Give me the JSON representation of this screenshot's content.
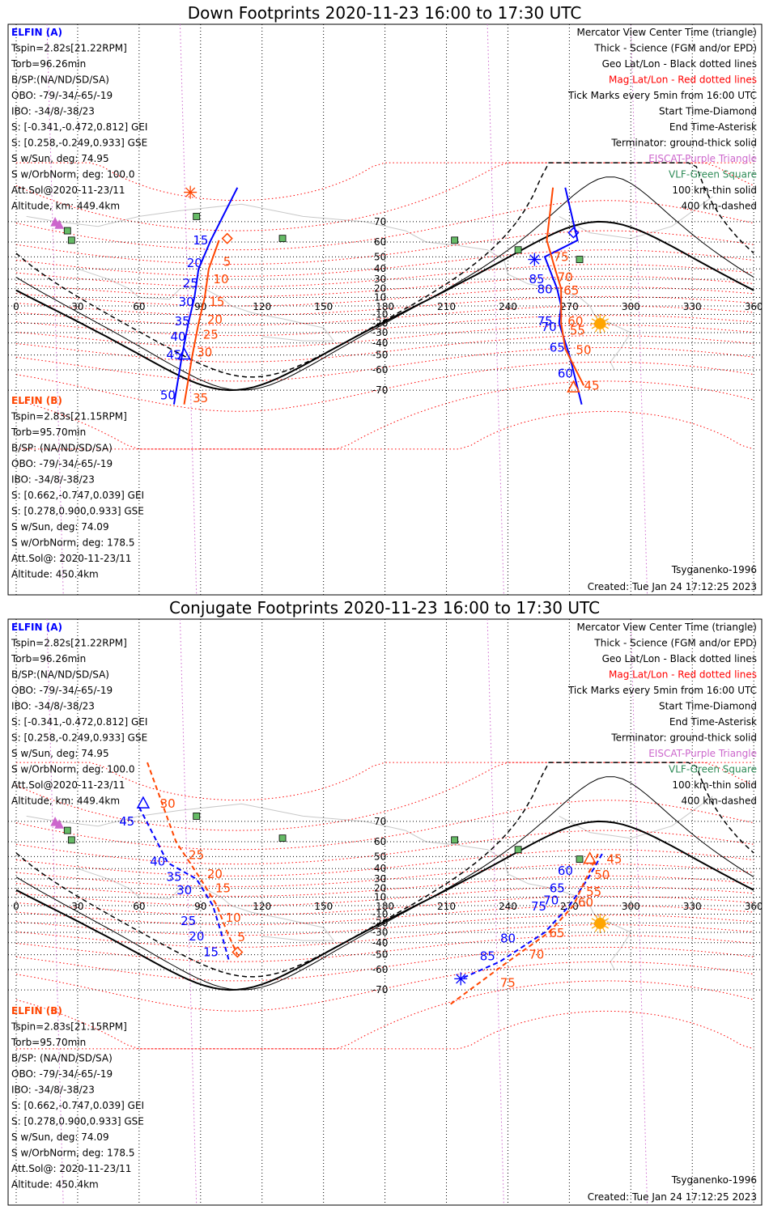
{
  "colors": {
    "elfin_a": "#0000ff",
    "elfin_b": "#ff4500",
    "geo_grid": "#000000",
    "mag_grid": "#ff0000",
    "eiscat": "#cc66cc",
    "vlf": "#2e8b57",
    "vlf_fill": "#66bb66",
    "sun": "#ffa500",
    "coast": "#c8c8c8"
  },
  "panels": [
    {
      "id": "down",
      "title": "Down Footprints 2020-11-23 16:00 to 17:30 UTC",
      "elfin_a": {
        "heading": "ELFIN (A)",
        "lines": [
          "Tspin=2.82s[21.22RPM]",
          "Torb=96.26min",
          "B/SP:(NA/ND/SD/SA)",
          "OBO: -79/-34/-65/-19",
          "IBO: -34/8/-38/23",
          "S: [-0.341,-0.472,0.812] GEI",
          "S: [0.258,-0.249,0.933] GSE",
          "S w/Sun, deg: 74.95",
          "S w/OrbNorm, deg: 100.0",
          "Att.Sol@2020-11-23/11",
          "Altitude, km: 449.4km"
        ]
      },
      "elfin_b": {
        "heading": "ELFIN (B)",
        "lines": [
          "Tspin=2.83s[21.15RPM]",
          "Torb=95.70min",
          "B/SP: (NA/ND/SD/SA)",
          "OBO: -79/-34/-65/-19",
          "IBO: -34/8/-38/23",
          "S: [0.662,-0.747,0.039] GEI",
          "S: [0.278,0.900,0.933] GSE",
          "S w/Sun, deg: 74.09",
          "S w/OrbNorm, deg: 178.5",
          "Att.Sol@: 2020-11-23/11",
          "Altitude: 450.4km"
        ]
      },
      "model": "Tsyganenko-1996",
      "created": "Created: Tue Jan 24 17:12:25 2023"
    },
    {
      "id": "conjugate",
      "title": "Conjugate Footprints 2020-11-23 16:00 to 17:30 UTC",
      "elfin_a": {
        "heading": "ELFIN (A)",
        "lines": [
          "Tspin=2.82s[21.22RPM]",
          "Torb=96.26min",
          "B/SP:(NA/ND/SD/SA)",
          "OBO: -79/-34/-65/-19",
          "IBO: -34/8/-38/23",
          "S: [-0.341,-0.472,0.812] GEI",
          "S: [0.258,-0.249,0.933] GSE",
          "S w/Sun, deg: 74.95",
          "S w/OrbNorm, deg: 100.0",
          "Att.Sol@2020-11-23/11",
          "Altitude, km: 449.4km"
        ]
      },
      "elfin_b": {
        "heading": "ELFIN (B)",
        "lines": [
          "Tspin=2.83s[21.15RPM]",
          "Torb=95.70min",
          "B/SP: (NA/ND/SD/SA)",
          "OBO: -79/-34/-65/-19",
          "IBO: -34/8/-38/23",
          "S: [0.662,-0.747,0.039] GEI",
          "S: [0.278,0.900,0.933] GSE",
          "S w/Sun, deg: 74.09",
          "S w/OrbNorm, deg: 178.5",
          "Att.Sol@: 2020-11-23/11",
          "Altitude: 450.4km"
        ]
      },
      "model": "Tsyganenko-1996",
      "created": "Created: Tue Jan 24 17:12:25 2023"
    }
  ],
  "legend": [
    {
      "text": "Mercator View Center Time (triangle)",
      "color": "#000000"
    },
    {
      "text": "Thick - Science (FGM and/or EPD)",
      "color": "#000000"
    },
    {
      "text": "Geo Lat/Lon - Black dotted lines",
      "color": "#000000"
    },
    {
      "text": "Mag Lat/Lon - Red dotted lines",
      "color": "#ff0000"
    },
    {
      "text": "Tick Marks every 5min from 16:00 UTC",
      "color": "#000000"
    },
    {
      "text": "Start Time-Diamond",
      "color": "#000000"
    },
    {
      "text": "End Time-Asterisk",
      "color": "#000000"
    },
    {
      "text": "Terminator: ground-thick solid",
      "color": "#000000"
    },
    {
      "text": "EISCAT-Purple Triangle",
      "color": "#cc66cc"
    },
    {
      "text": "VLF-Green Square",
      "color": "#2e8b57"
    },
    {
      "text": "100 km-thin solid",
      "color": "#000000"
    },
    {
      "text": "400 km-dashed",
      "color": "#000000"
    }
  ],
  "map_axes": {
    "lon_ticks": [
      "0",
      "30",
      "60",
      "90",
      "120",
      "150",
      "180",
      "210",
      "240",
      "270",
      "300",
      "330",
      "360"
    ],
    "lat_ticks": [
      "70",
      "60",
      "50",
      "40",
      "30",
      "20",
      "10",
      "-10",
      "-20",
      "-30",
      "-40",
      "-50",
      "-60",
      "-70"
    ]
  },
  "map_data": {
    "vlf_sites": [
      {
        "lon": 88,
        "lat": 72
      },
      {
        "lon": 25,
        "lat": 66
      },
      {
        "lon": 27,
        "lat": 61
      },
      {
        "lon": 130,
        "lat": 62
      },
      {
        "lon": 214,
        "lat": 61
      },
      {
        "lon": 245,
        "lat": 55
      },
      {
        "lon": 275,
        "lat": 48
      }
    ],
    "eiscat_sites": [
      {
        "lon": 19,
        "lat": 69.6
      },
      {
        "lon": 21,
        "lat": 68.5
      }
    ],
    "subsolar": {
      "lon": 285,
      "lat": -20.5
    },
    "down": {
      "elfin_a": {
        "track": [
          {
            "lon": 108,
            "lat": 80
          },
          {
            "lon": 95,
            "lat": 61
          },
          {
            "lon": 89,
            "lat": 40
          },
          {
            "lon": 87,
            "lat": 10
          },
          {
            "lon": 84,
            "lat": -20
          },
          {
            "lon": 81,
            "lat": -50
          },
          {
            "lon": 77,
            "lat": -75
          }
        ],
        "track2": [
          {
            "lon": 268,
            "lat": 80
          },
          {
            "lon": 274,
            "lat": 61
          },
          {
            "lon": 258,
            "lat": 50
          },
          {
            "lon": 264,
            "lat": 20
          },
          {
            "lon": 266,
            "lat": 0
          },
          {
            "lon": 265,
            "lat": -20
          },
          {
            "lon": 270,
            "lat": -50
          },
          {
            "lon": 276,
            "lat": -75
          }
        ],
        "ticks": [
          {
            "label": "15",
            "lon": 94,
            "lat": 61
          },
          {
            "label": "20",
            "lon": 91,
            "lat": 45
          },
          {
            "label": "25",
            "lon": 89,
            "lat": 26
          },
          {
            "label": "30",
            "lon": 87,
            "lat": 5
          },
          {
            "label": "35",
            "lon": 85,
            "lat": -18
          },
          {
            "label": "40",
            "lon": 83,
            "lat": -34
          },
          {
            "label": "45",
            "lon": 81,
            "lat": -50
          },
          {
            "label": "50",
            "lon": 78,
            "lat": -72
          },
          {
            "label": "85",
            "lon": 258,
            "lat": 30
          },
          {
            "label": "80",
            "lon": 262,
            "lat": 19
          },
          {
            "label": "75",
            "lon": 262,
            "lat": -18
          },
          {
            "label": "70",
            "lon": 264,
            "lat": -24
          },
          {
            "label": "65",
            "lon": 268,
            "lat": -44
          },
          {
            "label": "60",
            "lon": 272,
            "lat": -62
          }
        ]
      },
      "elfin_b": {
        "track": [
          {
            "lon": 99,
            "lat": 61
          },
          {
            "lon": 94,
            "lat": 40
          },
          {
            "lon": 92,
            "lat": 10
          },
          {
            "lon": 89,
            "lat": -20
          },
          {
            "lon": 86,
            "lat": -50
          },
          {
            "lon": 82,
            "lat": -75
          }
        ],
        "track2": [
          {
            "lon": 262,
            "lat": 80
          },
          {
            "lon": 259,
            "lat": 61
          },
          {
            "lon": 263,
            "lat": 40
          },
          {
            "lon": 266,
            "lat": 20
          },
          {
            "lon": 266,
            "lat": -20
          },
          {
            "lon": 268,
            "lat": -45
          },
          {
            "lon": 277,
            "lat": -68
          }
        ],
        "ticks": [
          {
            "label": "5",
            "lon": 99,
            "lat": 46
          },
          {
            "label": "10",
            "lon": 96,
            "lat": 30
          },
          {
            "label": "15",
            "lon": 94,
            "lat": 5
          },
          {
            "label": "20",
            "lon": 93,
            "lat": -16
          },
          {
            "label": "25",
            "lon": 91,
            "lat": -32
          },
          {
            "label": "30",
            "lon": 88,
            "lat": -48
          },
          {
            "label": "35",
            "lon": 86,
            "lat": -73
          },
          {
            "label": "75",
            "lon": 262,
            "lat": 50
          },
          {
            "label": "70",
            "lon": 264,
            "lat": 32
          },
          {
            "label": "65",
            "lon": 267,
            "lat": 18
          },
          {
            "label": "60",
            "lon": 269,
            "lat": -18
          },
          {
            "label": "55",
            "lon": 270,
            "lat": -28
          },
          {
            "label": "50",
            "lon": 273,
            "lat": -46
          },
          {
            "label": "45",
            "lon": 277,
            "lat": -68
          }
        ]
      }
    },
    "conjugate": {
      "elfin_a": {
        "track": [
          {
            "lon": 60,
            "lat": 75
          },
          {
            "lon": 74,
            "lat": 45
          },
          {
            "lon": 88,
            "lat": 30
          },
          {
            "lon": 96,
            "lat": 0
          },
          {
            "lon": 100,
            "lat": -30
          },
          {
            "lon": 104,
            "lat": -55
          }
        ],
        "track2": [
          {
            "lon": 286,
            "lat": 52
          },
          {
            "lon": 279,
            "lat": 30
          },
          {
            "lon": 270,
            "lat": 0
          },
          {
            "lon": 258,
            "lat": -30
          },
          {
            "lon": 236,
            "lat": -55
          },
          {
            "lon": 217,
            "lat": -65
          }
        ],
        "ticks": [
          {
            "label": "45",
            "lon": 58,
            "lat": 70
          },
          {
            "label": "40",
            "lon": 73,
            "lat": 46
          },
          {
            "label": "35",
            "lon": 81,
            "lat": 32
          },
          {
            "label": "30",
            "lon": 86,
            "lat": 18
          },
          {
            "label": "25",
            "lon": 88,
            "lat": -18
          },
          {
            "label": "20",
            "lon": 92,
            "lat": -34
          },
          {
            "label": "15",
            "lon": 99,
            "lat": -48
          },
          {
            "label": "60",
            "lon": 272,
            "lat": 38
          },
          {
            "label": "65",
            "lon": 268,
            "lat": 20
          },
          {
            "label": "70",
            "lon": 265,
            "lat": 6
          },
          {
            "label": "75",
            "lon": 259,
            "lat": -1
          },
          {
            "label": "80",
            "lon": 244,
            "lat": -36
          },
          {
            "label": "85",
            "lon": 234,
            "lat": -51
          }
        ]
      },
      "elfin_b": {
        "track": [
          {
            "lon": 64,
            "lat": 84
          },
          {
            "lon": 78,
            "lat": 60
          },
          {
            "lon": 90,
            "lat": 30
          },
          {
            "lon": 98,
            "lat": 0
          },
          {
            "lon": 103,
            "lat": -30
          },
          {
            "lon": 108,
            "lat": -50
          }
        ],
        "track2": [
          {
            "lon": 284,
            "lat": 52
          },
          {
            "lon": 278,
            "lat": 30
          },
          {
            "lon": 272,
            "lat": 0
          },
          {
            "lon": 260,
            "lat": -30
          },
          {
            "lon": 240,
            "lat": -55
          },
          {
            "lon": 212,
            "lat": -75
          }
        ],
        "ticks": [
          {
            "label": "30",
            "lon": 70,
            "lat": 76
          },
          {
            "label": "25",
            "lon": 84,
            "lat": 51
          },
          {
            "label": "20",
            "lon": 93,
            "lat": 35
          },
          {
            "label": "15",
            "lon": 97,
            "lat": 20
          },
          {
            "label": "10",
            "lon": 102,
            "lat": -14
          },
          {
            "label": "5",
            "lon": 106,
            "lat": -35
          },
          {
            "label": "45",
            "lon": 288,
            "lat": 48
          },
          {
            "label": "50",
            "lon": 282,
            "lat": 34
          },
          {
            "label": "55",
            "lon": 278,
            "lat": 16
          },
          {
            "label": "60",
            "lon": 274,
            "lat": 4
          },
          {
            "label": "65",
            "lon": 260,
            "lat": -31
          },
          {
            "label": "70",
            "lon": 250,
            "lat": -50
          },
          {
            "label": "75",
            "lon": 236,
            "lat": -67
          }
        ]
      }
    }
  }
}
